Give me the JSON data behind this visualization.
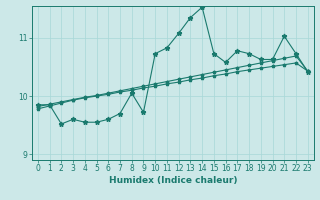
{
  "xlabel": "Humidex (Indice chaleur)",
  "background_color": "#cce8e8",
  "line_color": "#1a7a6e",
  "x_data": [
    0,
    1,
    2,
    3,
    4,
    5,
    6,
    7,
    8,
    9,
    10,
    11,
    12,
    13,
    14,
    15,
    16,
    17,
    18,
    19,
    20,
    21,
    22,
    23
  ],
  "y_main": [
    9.85,
    9.85,
    9.52,
    9.6,
    9.55,
    9.55,
    9.6,
    9.7,
    10.05,
    9.72,
    10.73,
    10.83,
    11.08,
    11.35,
    11.53,
    10.73,
    10.58,
    10.78,
    10.73,
    10.63,
    10.63,
    11.03,
    10.73,
    10.42
  ],
  "y_trend1": [
    9.82,
    9.86,
    9.9,
    9.94,
    9.98,
    10.01,
    10.05,
    10.09,
    10.13,
    10.17,
    10.21,
    10.25,
    10.29,
    10.33,
    10.37,
    10.41,
    10.45,
    10.49,
    10.53,
    10.57,
    10.61,
    10.65,
    10.69,
    10.43
  ],
  "y_trend2": [
    9.78,
    9.83,
    9.88,
    9.93,
    9.97,
    10.0,
    10.03,
    10.07,
    10.1,
    10.14,
    10.17,
    10.21,
    10.24,
    10.28,
    10.31,
    10.35,
    10.38,
    10.42,
    10.45,
    10.48,
    10.51,
    10.54,
    10.57,
    10.43
  ],
  "xlim": [
    -0.5,
    23.5
  ],
  "ylim": [
    8.9,
    11.55
  ],
  "yticks": [
    9,
    10,
    11
  ],
  "xticks": [
    0,
    1,
    2,
    3,
    4,
    5,
    6,
    7,
    8,
    9,
    10,
    11,
    12,
    13,
    14,
    15,
    16,
    17,
    18,
    19,
    20,
    21,
    22,
    23
  ],
  "grid_color": "#a8d8d8",
  "marker": "*",
  "markersize": 3.5,
  "linewidth": 0.8
}
